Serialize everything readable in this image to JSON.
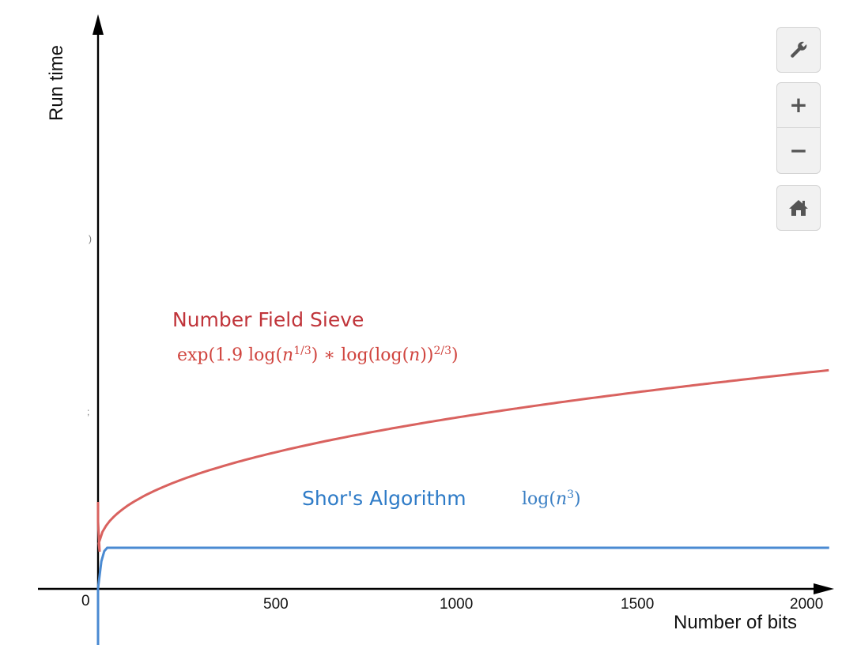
{
  "chart_data": {
    "type": "line",
    "xlabel": "Number of bits",
    "ylabel": "Run time",
    "x_ticks": [
      "0",
      "500",
      "1000",
      "1500",
      "2000"
    ],
    "xlim": [
      0,
      2000
    ],
    "grid": false,
    "legend": "none",
    "series": [
      {
        "name": "Number Field Sieve",
        "formula_parts": {
          "a": "exp(1.9 log(",
          "b": "n",
          "c": "1/3",
          "d": ") ∗ log(log(",
          "e": "n",
          "f": "))",
          "g": "2/3",
          "h": ")"
        },
        "color": "#d9625f",
        "label_color": "#c0343a"
      },
      {
        "name": "Shor's Algorithm",
        "formula_parts": {
          "a": "log(",
          "b": "n",
          "c": "3",
          "d": ")"
        },
        "color": "#4a8ad2",
        "label_color": "#2e7bc7"
      }
    ]
  },
  "toolbar": {
    "settings_icon": "wrench-icon",
    "zoom_in_label": "+",
    "zoom_out_label": "−",
    "home_icon": "home-icon"
  },
  "y_axis_stray_marks": [
    ")",
    ";"
  ]
}
